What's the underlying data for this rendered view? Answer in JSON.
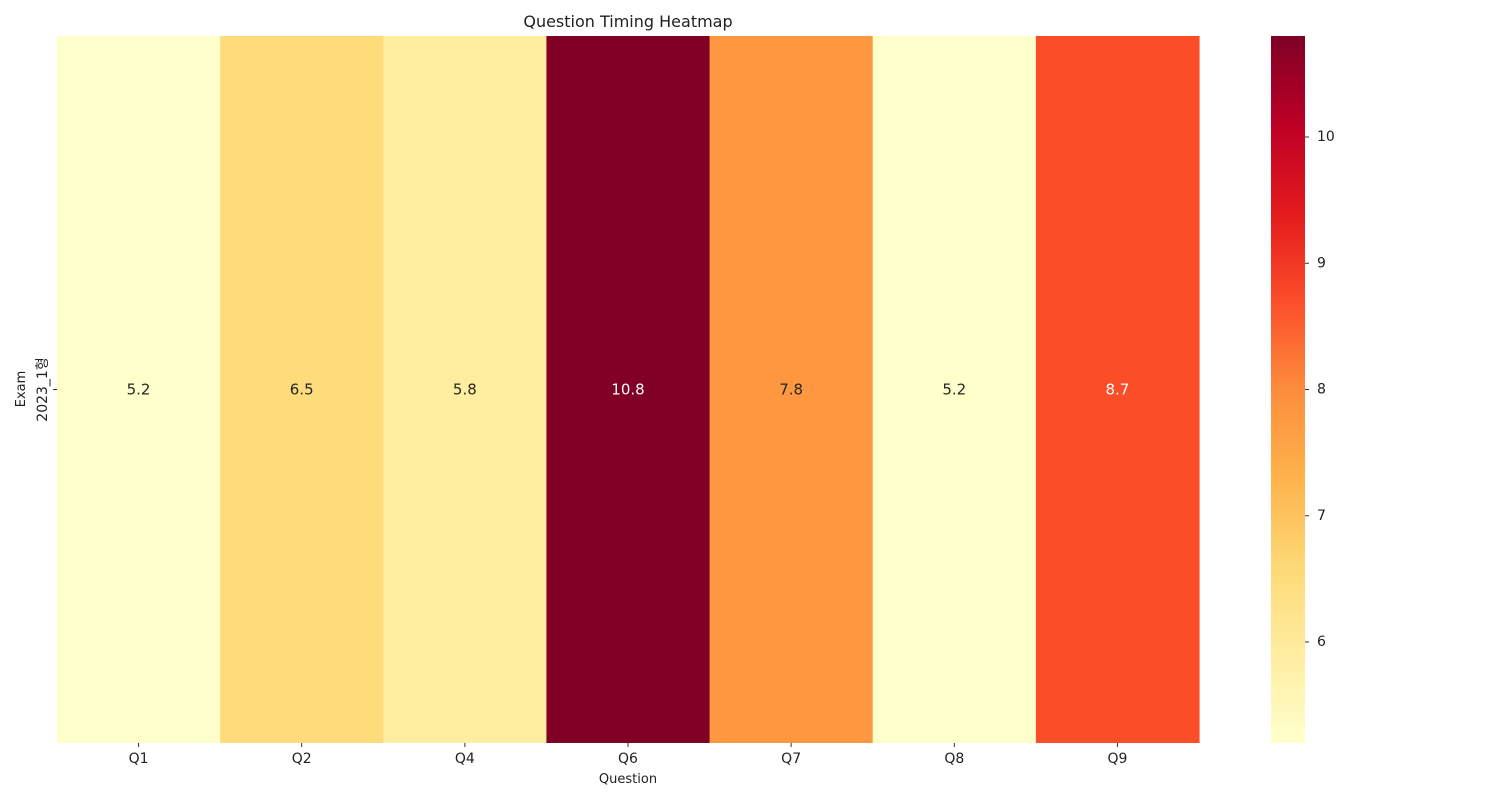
{
  "chart_data": {
    "type": "heatmap",
    "title": "Question Timing Heatmap",
    "xlabel": "Question",
    "ylabel": "Exam",
    "x_categories": [
      "Q1",
      "Q2",
      "Q4",
      "Q6",
      "Q7",
      "Q8",
      "Q9"
    ],
    "y_categories": [
      "2023_1형"
    ],
    "values": [
      [
        5.2,
        6.5,
        5.8,
        10.8,
        7.8,
        5.2,
        8.7
      ]
    ],
    "value_labels": [
      [
        "5.2",
        "6.5",
        "5.8",
        "10.8",
        "7.8",
        "5.2",
        "8.7"
      ]
    ],
    "colormap": "YlOrRd",
    "colorbar": {
      "range": [
        5.2,
        10.8
      ],
      "ticks": [
        6,
        7,
        8,
        9,
        10
      ],
      "tick_labels": [
        "6",
        "7",
        "8",
        "9",
        "10"
      ]
    },
    "cell_colors": [
      "#ffffcc",
      "#fedb7b",
      "#ffeda0",
      "#800026",
      "#fd9740",
      "#ffffcc",
      "#fc4d29"
    ],
    "colormap_stops": [
      "#ffffcc",
      "#ffeda0",
      "#fed976",
      "#feb24c",
      "#fd8d3c",
      "#fc4e2a",
      "#e31a1c",
      "#bd0026",
      "#800026"
    ]
  }
}
